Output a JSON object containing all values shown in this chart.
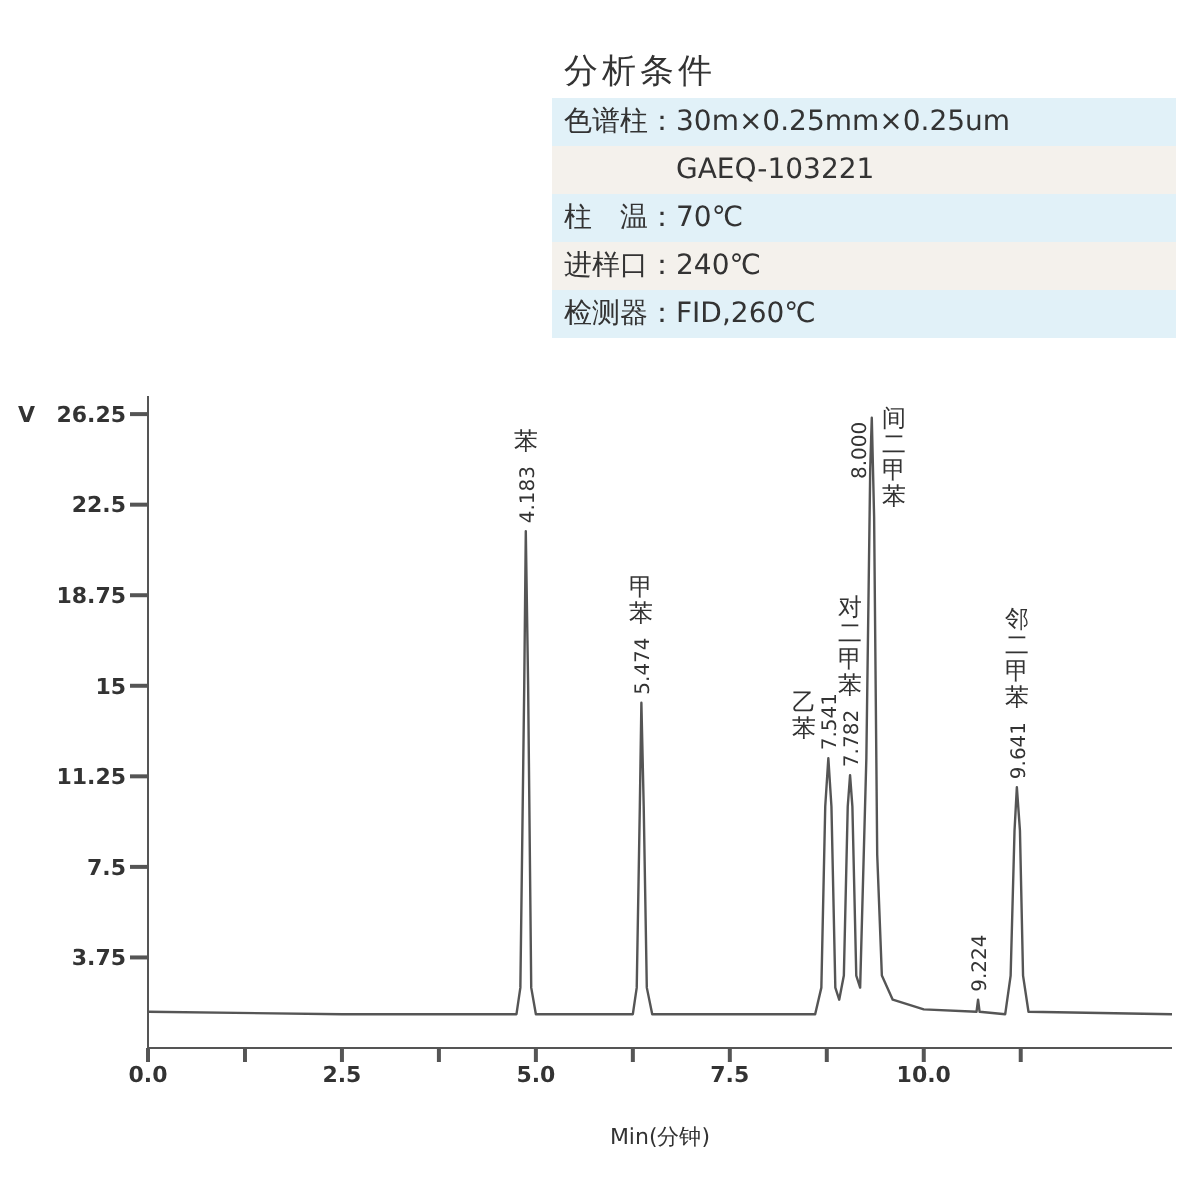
{
  "chart_data": [
    {
      "type": "other",
      "title": "分析条件",
      "annotations": [
        "色谱柱：30m×0.25mm×0.25um",
        "　　　　GAEQ-103221",
        "柱　温：70℃",
        "进样口：240℃",
        "检测器：FID,260℃"
      ]
    },
    {
      "type": "line",
      "ylabel": "V",
      "xlabel": "Min(分钟)",
      "color": "#555555",
      "marker": "none",
      "grid": false,
      "legend": false,
      "xlim": [
        0,
        13.2
      ],
      "ylim": [
        0,
        27
      ],
      "xticks": [
        {
          "value": 0,
          "label": "0.0"
        },
        {
          "value": 1.25,
          "label": null
        },
        2.5,
        {
          "value": 3.75,
          "label": null
        },
        {
          "value": 5,
          "label": "5.0"
        },
        {
          "value": 6.25,
          "label": null
        },
        7.5,
        {
          "value": 8.75,
          "label": null
        },
        {
          "value": 10,
          "label": "10.0"
        },
        {
          "value": 11.25,
          "label": null
        }
      ],
      "yticks": [
        3.75,
        7.5,
        11.25,
        15,
        18.75,
        22.5,
        26.25
      ],
      "x": [
        0,
        2.5,
        4.75,
        4.8,
        4.85,
        4.87,
        4.9,
        4.94,
        5.0,
        6.25,
        6.3,
        6.34,
        6.36,
        6.39,
        6.43,
        6.5,
        8.6,
        8.68,
        8.73,
        8.77,
        8.81,
        8.86,
        8.91,
        8.97,
        9.02,
        9.05,
        9.08,
        9.13,
        9.18,
        9.26,
        9.31,
        9.33,
        9.36,
        9.4,
        9.46,
        9.6,
        10.0,
        10.68,
        10.7,
        10.72,
        11.05,
        11.12,
        11.17,
        11.2,
        11.24,
        11.28,
        11.35,
        13.2
      ],
      "values": [
        1.5,
        1.4,
        1.4,
        2.5,
        15,
        21.4,
        15,
        2.5,
        1.4,
        1.4,
        2.5,
        10,
        14.3,
        10,
        2.5,
        1.4,
        1.4,
        2.5,
        10,
        12.0,
        10,
        2.5,
        2.0,
        3,
        10,
        11.3,
        10,
        3,
        2.5,
        12,
        24,
        26.1,
        22,
        8,
        3,
        2.0,
        1.6,
        1.5,
        2.0,
        1.5,
        1.4,
        3,
        9,
        10.8,
        9,
        3,
        1.5,
        1.4
      ],
      "annotations": [
        {
          "text": "4.183",
          "x": 4.87,
          "y": 21.4
        },
        "苯",
        {
          "text": "5.474",
          "x": 6.36,
          "y": 14.3
        },
        "甲苯",
        {
          "text": "7.541",
          "x": 8.77,
          "y": 12.0
        },
        "乙苯",
        {
          "text": "7.782",
          "x": 9.05,
          "y": 11.3
        },
        "对二甲苯",
        {
          "text": "8.000",
          "x": 9.33,
          "y": 26.1
        },
        "间二甲苯",
        {
          "text": "9.224",
          "x": 10.7,
          "y": 2.0
        },
        {
          "text": "9.641",
          "x": 11.2,
          "y": 10.8
        },
        "邻二甲苯"
      ]
    }
  ]
}
